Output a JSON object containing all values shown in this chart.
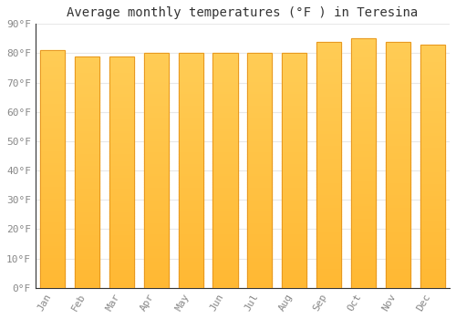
{
  "title": "Average monthly temperatures (°F ) in Teresina",
  "months": [
    "Jan",
    "Feb",
    "Mar",
    "Apr",
    "May",
    "Jun",
    "Jul",
    "Aug",
    "Sep",
    "Oct",
    "Nov",
    "Dec"
  ],
  "values": [
    81,
    79,
    79,
    80,
    80,
    80,
    80,
    80,
    84,
    85,
    84,
    83
  ],
  "bar_color_top": "#FFB833",
  "bar_color_bottom": "#FFCC55",
  "bar_edge_color": "#E89820",
  "ylim": [
    0,
    90
  ],
  "yticks": [
    0,
    10,
    20,
    30,
    40,
    50,
    60,
    70,
    80,
    90
  ],
  "ytick_labels": [
    "0°F",
    "10°F",
    "20°F",
    "30°F",
    "40°F",
    "50°F",
    "60°F",
    "70°F",
    "80°F",
    "90°F"
  ],
  "plot_bg_color": "#FFFFFF",
  "fig_bg_color": "#FFFFFF",
  "grid_color": "#E8E8E8",
  "title_fontsize": 10,
  "tick_fontsize": 8,
  "tick_color": "#888888",
  "spine_color": "#333333",
  "bar_width": 0.72
}
